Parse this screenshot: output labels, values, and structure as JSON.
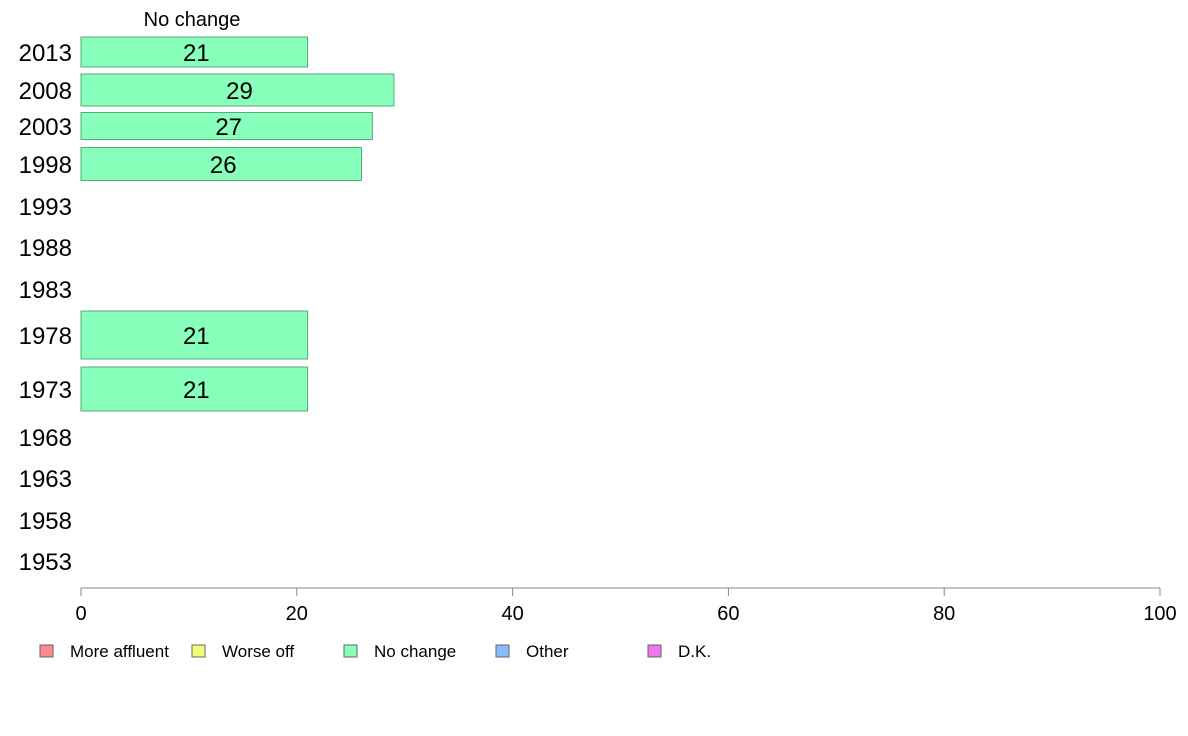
{
  "chart_data": {
    "type": "bar",
    "orientation": "horizontal",
    "title": "",
    "xlabel": "",
    "ylabel": "",
    "series_title": "No change",
    "categories": [
      "2013",
      "2008",
      "2003",
      "1998",
      "1993",
      "1988",
      "1983",
      "1978",
      "1973",
      "1968",
      "1963",
      "1958",
      "1953"
    ],
    "series": [
      {
        "name": "No change",
        "color": "#88ffbb",
        "values": [
          21,
          29,
          27,
          26,
          null,
          null,
          null,
          21,
          21,
          null,
          null,
          null,
          null
        ]
      }
    ],
    "xlim": [
      0,
      100
    ],
    "xticks": [
      0,
      20,
      40,
      60,
      80,
      100
    ],
    "grid": false,
    "legend_position": "bottom-left",
    "legend": [
      {
        "label": "More affluent",
        "color": "#ff8888"
      },
      {
        "label": "Worse off",
        "color": "#eeff77"
      },
      {
        "label": "No change",
        "color": "#88ffbb"
      },
      {
        "label": "Other",
        "color": "#88bbff"
      },
      {
        "label": "D.K.",
        "color": "#ee77ee"
      }
    ]
  }
}
